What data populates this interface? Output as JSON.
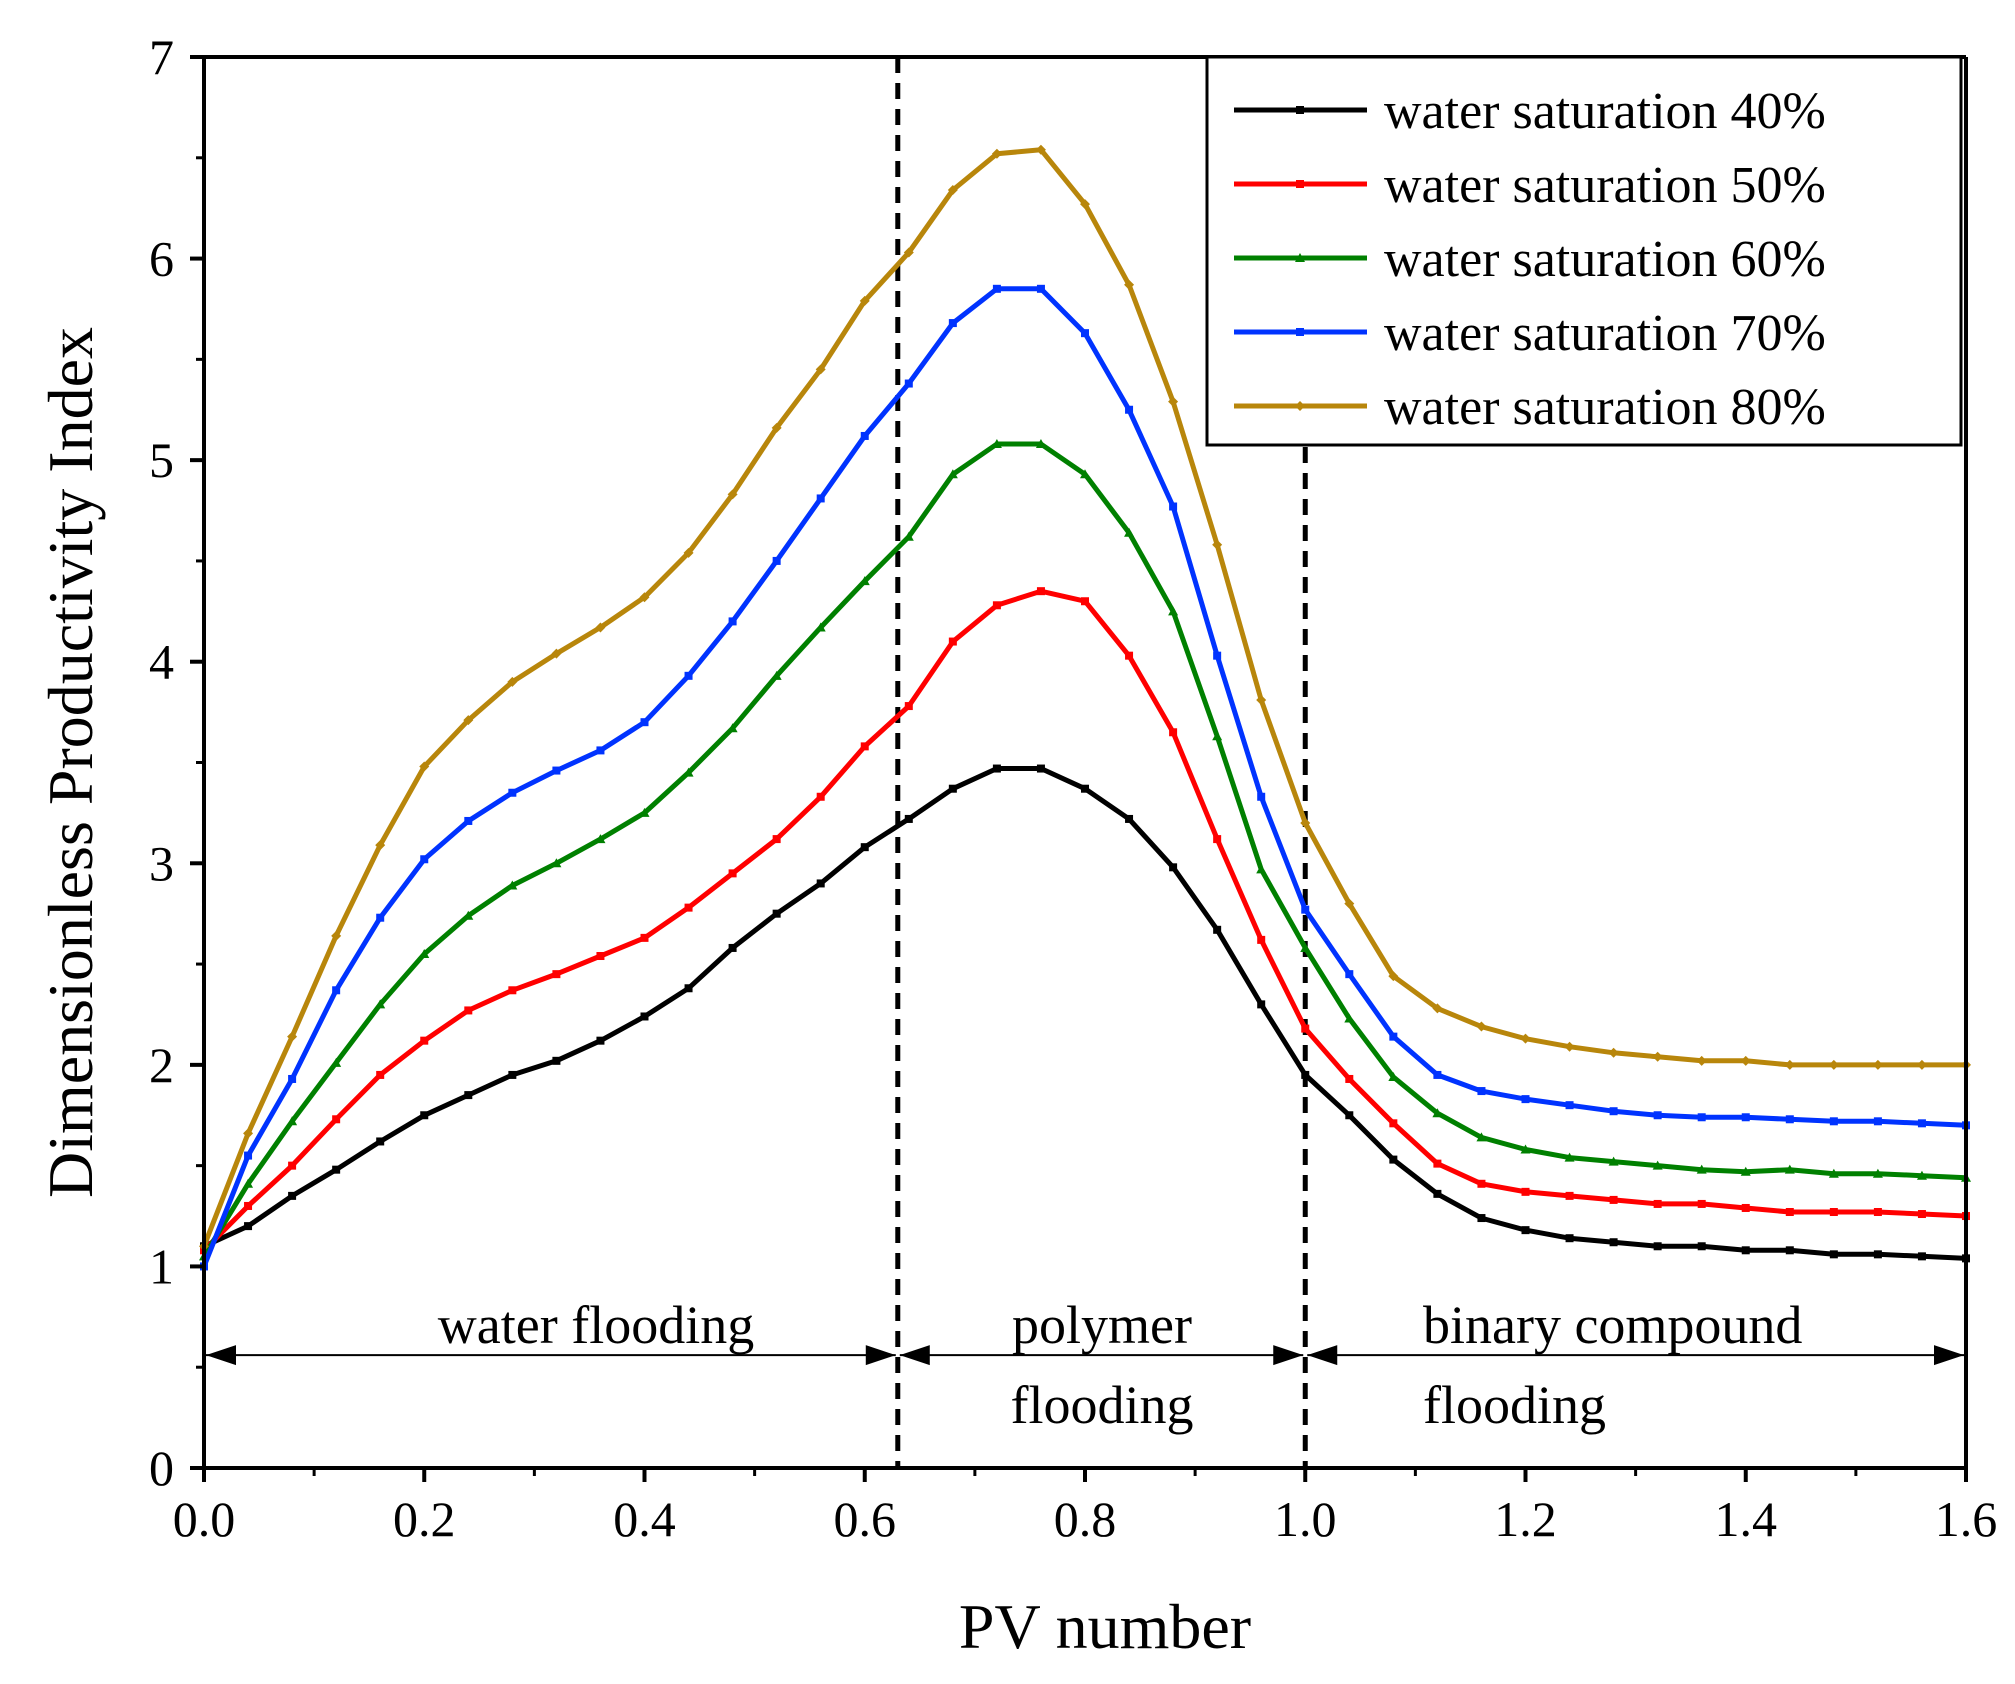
{
  "chart_data": {
    "type": "line",
    "xlabel": "PV number",
    "ylabel": "Dimensionless Productivity Index",
    "xlim": [
      0.0,
      1.6
    ],
    "ylim": [
      0,
      7
    ],
    "x_ticks": [
      "0.0",
      "0.2",
      "0.4",
      "0.6",
      "0.8",
      "1.0",
      "1.2",
      "1.4",
      "1.6"
    ],
    "y_ticks": [
      "0",
      "1",
      "2",
      "3",
      "4",
      "5",
      "6",
      "7"
    ],
    "grid": false,
    "legend_position": "top-right",
    "x": [
      0.0,
      0.04,
      0.08,
      0.12,
      0.16,
      0.2,
      0.24,
      0.28,
      0.32,
      0.36,
      0.4,
      0.44,
      0.48,
      0.52,
      0.56,
      0.6,
      0.64,
      0.68,
      0.72,
      0.76,
      0.8,
      0.84,
      0.88,
      0.92,
      0.96,
      1.0,
      1.04,
      1.08,
      1.12,
      1.16,
      1.2,
      1.24,
      1.28,
      1.32,
      1.36,
      1.4,
      1.44,
      1.48,
      1.52,
      1.56,
      1.6
    ],
    "series": [
      {
        "name": "water saturation 40%",
        "color": "#000000",
        "marker": "square",
        "values": [
          1.1,
          1.2,
          1.35,
          1.48,
          1.62,
          1.75,
          1.85,
          1.95,
          2.02,
          2.12,
          2.24,
          2.38,
          2.58,
          2.75,
          2.9,
          3.08,
          3.22,
          3.37,
          3.47,
          3.47,
          3.37,
          3.22,
          2.98,
          2.67,
          2.3,
          1.95,
          1.75,
          1.53,
          1.36,
          1.24,
          1.18,
          1.14,
          1.12,
          1.1,
          1.1,
          1.08,
          1.08,
          1.06,
          1.06,
          1.05,
          1.04
        ]
      },
      {
        "name": "water saturation 50%",
        "color": "#ff0000",
        "marker": "square",
        "values": [
          1.08,
          1.3,
          1.5,
          1.73,
          1.95,
          2.12,
          2.27,
          2.37,
          2.45,
          2.54,
          2.63,
          2.78,
          2.95,
          3.12,
          3.33,
          3.58,
          3.78,
          4.1,
          4.28,
          4.35,
          4.3,
          4.03,
          3.65,
          3.12,
          2.62,
          2.18,
          1.93,
          1.71,
          1.51,
          1.41,
          1.37,
          1.35,
          1.33,
          1.31,
          1.31,
          1.29,
          1.27,
          1.27,
          1.27,
          1.26,
          1.25
        ]
      },
      {
        "name": "water saturation 60%",
        "color": "#008000",
        "marker": "triangle",
        "values": [
          1.05,
          1.41,
          1.72,
          2.01,
          2.3,
          2.55,
          2.74,
          2.89,
          3.0,
          3.12,
          3.25,
          3.45,
          3.67,
          3.93,
          4.17,
          4.4,
          4.62,
          4.93,
          5.08,
          5.08,
          4.93,
          4.64,
          4.25,
          3.63,
          2.97,
          2.58,
          2.23,
          1.94,
          1.76,
          1.64,
          1.58,
          1.54,
          1.52,
          1.5,
          1.48,
          1.47,
          1.48,
          1.46,
          1.46,
          1.45,
          1.44
        ]
      },
      {
        "name": "water saturation 70%",
        "color": "#0033ff",
        "marker": "square",
        "values": [
          1.0,
          1.55,
          1.93,
          2.37,
          2.73,
          3.02,
          3.21,
          3.35,
          3.46,
          3.56,
          3.7,
          3.93,
          4.2,
          4.5,
          4.81,
          5.12,
          5.38,
          5.68,
          5.85,
          5.85,
          5.63,
          5.25,
          4.77,
          4.03,
          3.33,
          2.77,
          2.45,
          2.14,
          1.95,
          1.87,
          1.83,
          1.8,
          1.77,
          1.75,
          1.74,
          1.74,
          1.73,
          1.72,
          1.72,
          1.71,
          1.7
        ]
      },
      {
        "name": "water saturation 80%",
        "color": "#b8860b",
        "marker": "diamond",
        "values": [
          1.1,
          1.66,
          2.14,
          2.64,
          3.09,
          3.48,
          3.71,
          3.9,
          4.04,
          4.17,
          4.32,
          4.54,
          4.83,
          5.16,
          5.45,
          5.79,
          6.03,
          6.34,
          6.52,
          6.54,
          6.27,
          5.87,
          5.29,
          4.58,
          3.81,
          3.2,
          2.8,
          2.44,
          2.28,
          2.19,
          2.13,
          2.09,
          2.06,
          2.04,
          2.02,
          2.02,
          2.0,
          2.0,
          2.0,
          2.0,
          2.0
        ]
      }
    ],
    "phase_boundaries": [
      0.63,
      1.0
    ],
    "phases": [
      {
        "lines": [
          "water flooding"
        ],
        "x_start": 0.0,
        "x_end": 0.63
      },
      {
        "lines": [
          "polymer",
          "flooding"
        ],
        "x_start": 0.63,
        "x_end": 1.0
      },
      {
        "lines": [
          "binary compound",
          "flooding"
        ],
        "x_start": 1.0,
        "x_end": 1.6
      }
    ],
    "phase_arrow_y": 0.56
  }
}
